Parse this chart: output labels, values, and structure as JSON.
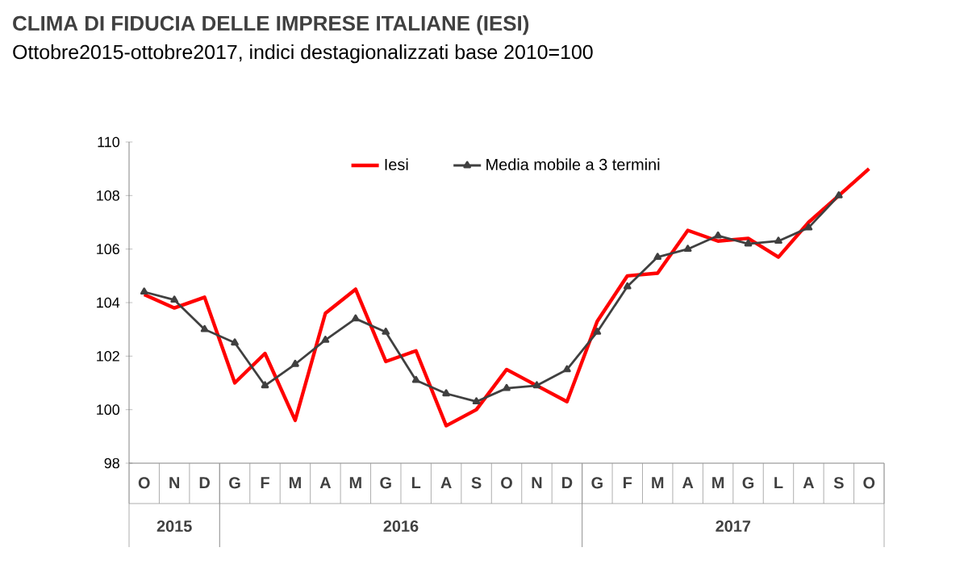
{
  "chart_data": {
    "type": "line",
    "title": "CLIMA DI FIDUCIA DELLE IMPRESE ITALIANE (IESI)",
    "subtitle": "Ottobre2015-ottobre2017, indici destagionalizzati base 2010=100",
    "categories": [
      "O",
      "N",
      "D",
      "G",
      "F",
      "M",
      "A",
      "M",
      "G",
      "L",
      "A",
      "S",
      "O",
      "N",
      "D",
      "G",
      "F",
      "M",
      "A",
      "M",
      "G",
      "L",
      "A",
      "S",
      "O"
    ],
    "series": [
      {
        "name": "Iesi",
        "color": "#ff0000",
        "marker": "none",
        "values": [
          104.3,
          103.8,
          104.2,
          101.0,
          102.1,
          99.6,
          103.6,
          104.5,
          101.8,
          102.2,
          99.4,
          100.0,
          101.5,
          100.9,
          100.3,
          103.3,
          105.0,
          105.1,
          106.7,
          106.3,
          106.4,
          105.7,
          107.0,
          108.0,
          109.0
        ]
      },
      {
        "name": "Media mobile a 3 termini",
        "color": "#404040",
        "marker": "triangle",
        "values": [
          104.4,
          104.1,
          103.0,
          102.5,
          100.9,
          101.7,
          102.6,
          103.4,
          102.9,
          101.1,
          100.6,
          100.3,
          100.8,
          100.9,
          101.5,
          102.9,
          104.6,
          105.7,
          106.0,
          106.5,
          106.2,
          106.3,
          106.8,
          108.0,
          null
        ]
      }
    ],
    "annotations": [
      "2015",
      "2016",
      "2017"
    ],
    "ylim": [
      98,
      110
    ],
    "yticks": [
      98,
      100,
      102,
      104,
      106,
      108,
      110
    ],
    "legend": "top",
    "grid": false,
    "line_style": "solid"
  }
}
